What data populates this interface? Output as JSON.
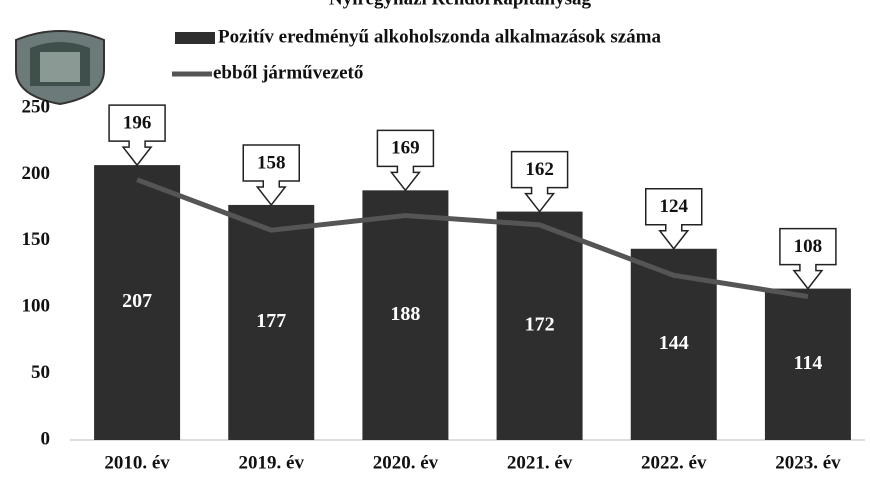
{
  "chart_data": {
    "type": "bar",
    "title": "Nyíregyházi Rendőrkapitányság",
    "categories": [
      "2010. év",
      "2019. év",
      "2020. év",
      "2021. év",
      "2022. év",
      "2023. év"
    ],
    "series": [
      {
        "name": "Pozitív eredményű alkoholszonda alkalmazások száma",
        "type": "bar",
        "color": "#2e2e2e",
        "values": [
          207,
          177,
          188,
          172,
          144,
          114
        ]
      },
      {
        "name": "ebből járművezető",
        "type": "line",
        "color": "#555555",
        "values": [
          196,
          158,
          169,
          162,
          124,
          108
        ]
      }
    ],
    "ylim": [
      0,
      250
    ],
    "yticks": [
      0,
      50,
      100,
      150,
      200,
      250
    ]
  }
}
